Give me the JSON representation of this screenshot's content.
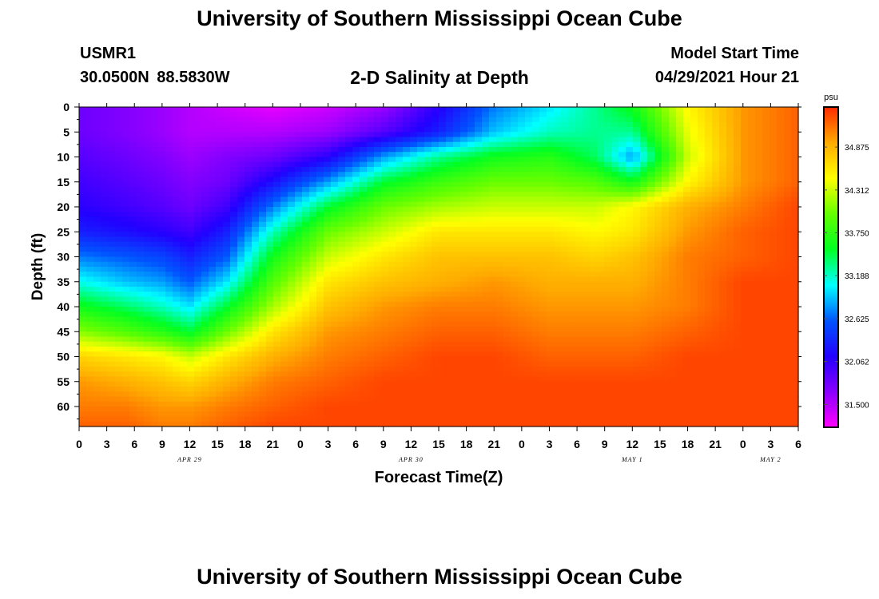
{
  "header": {
    "title": "University of Southern Mississippi Ocean Cube",
    "station_id": "USMR1",
    "station_location": "30.0500N 88.5830W",
    "model_start_label": "Model Start Time",
    "model_start_value": "04/29/2021 Hour 21"
  },
  "footer": {
    "title": "University of Southern Mississippi Ocean Cube"
  },
  "colors": {
    "scale": [
      "#ff00ff",
      "#8a00ff",
      "#2200ff",
      "#0055ff",
      "#00ffff",
      "#00ff22",
      "#66ff00",
      "#ffff00",
      "#ffaa00",
      "#ff2a00"
    ]
  },
  "chart_data": {
    "type": "heatmap",
    "title": "2-D Salinity at Depth",
    "xlabel": "Forecast Time(Z)",
    "ylabel": "Depth (ft)",
    "colorbar_unit": "psu",
    "colorbar_ticks": [
      31.5,
      32.062,
      32.625,
      33.188,
      33.75,
      34.312,
      34.875
    ],
    "colorbar_tick_labels": [
      "31.500",
      "32.062",
      "32.625",
      "33.188",
      "33.750",
      "34.312",
      "34.875"
    ],
    "value_range": [
      31.2,
      35.4
    ],
    "x_hours": [
      0,
      3,
      6,
      9,
      12,
      15,
      18,
      21,
      24,
      27,
      30,
      33,
      36,
      39,
      42,
      45,
      48,
      51,
      54,
      57,
      60,
      63,
      66,
      69,
      72,
      75,
      78
    ],
    "x_tick_labels": [
      "0",
      "3",
      "6",
      "9",
      "12",
      "15",
      "18",
      "21",
      "0",
      "3",
      "6",
      "9",
      "12",
      "15",
      "18",
      "21",
      "0",
      "3",
      "6",
      "9",
      "12",
      "15",
      "18",
      "21",
      "0",
      "3",
      "6"
    ],
    "date_labels": [
      {
        "hour": 12,
        "label": "APR 29"
      },
      {
        "hour": 36,
        "label": "APR 30"
      },
      {
        "hour": 60,
        "label": "MAY 1"
      },
      {
        "hour": 75,
        "label": "MAY 2"
      }
    ],
    "xlim": [
      0,
      78
    ],
    "ylim": [
      0,
      64
    ],
    "y_ticks": [
      0,
      5,
      10,
      15,
      20,
      25,
      30,
      35,
      40,
      45,
      50,
      55,
      60
    ],
    "depths": [
      0,
      5,
      10,
      15,
      20,
      25,
      30,
      35,
      40,
      45,
      50,
      55,
      60,
      64
    ],
    "values": [
      [
        31.8,
        31.7,
        31.6,
        31.5,
        31.4,
        31.3,
        31.4,
        31.6,
        32.1,
        32.7,
        33.0,
        33.3,
        33.6,
        34.5,
        35.0,
        35.2
      ],
      [
        31.8,
        31.7,
        31.6,
        31.5,
        31.5,
        31.5,
        31.6,
        31.9,
        32.3,
        32.9,
        33.2,
        33.3,
        33.3,
        34.4,
        35.0,
        35.2
      ],
      [
        31.9,
        31.8,
        31.7,
        31.6,
        31.7,
        31.8,
        32.1,
        32.8,
        33.3,
        33.6,
        33.7,
        33.4,
        32.8,
        34.3,
        35.0,
        35.2
      ],
      [
        32.0,
        31.9,
        31.8,
        31.7,
        31.8,
        32.2,
        32.8,
        33.5,
        33.8,
        34.0,
        34.0,
        33.9,
        33.6,
        34.5,
        35.0,
        35.2
      ],
      [
        32.1,
        32.0,
        31.9,
        31.8,
        32.0,
        32.7,
        33.5,
        34.0,
        34.2,
        34.3,
        34.3,
        34.3,
        34.5,
        34.9,
        35.1,
        35.3
      ],
      [
        32.3,
        32.2,
        32.1,
        32.0,
        32.3,
        33.2,
        34.0,
        34.3,
        34.6,
        34.6,
        34.6,
        34.5,
        34.6,
        35.0,
        35.2,
        35.3
      ],
      [
        32.7,
        32.6,
        32.5,
        32.3,
        32.6,
        33.6,
        34.3,
        34.6,
        34.8,
        34.8,
        34.8,
        34.7,
        34.8,
        35.1,
        35.2,
        35.3
      ],
      [
        33.1,
        32.9,
        32.8,
        32.6,
        33.0,
        33.9,
        34.6,
        34.8,
        34.9,
        35.0,
        34.9,
        34.9,
        34.9,
        35.1,
        35.3,
        35.3
      ],
      [
        33.6,
        33.4,
        33.2,
        33.0,
        33.5,
        34.2,
        34.8,
        35.0,
        35.1,
        35.1,
        35.0,
        35.0,
        35.0,
        35.1,
        35.3,
        35.3
      ],
      [
        34.1,
        33.9,
        33.7,
        33.5,
        34.0,
        34.6,
        35.0,
        35.1,
        35.2,
        35.2,
        35.1,
        35.1,
        35.1,
        35.2,
        35.3,
        35.3
      ],
      [
        34.7,
        34.6,
        34.5,
        34.3,
        34.6,
        34.9,
        35.1,
        35.2,
        35.3,
        35.3,
        35.2,
        35.2,
        35.2,
        35.3,
        35.3,
        35.3
      ],
      [
        35.0,
        34.9,
        34.8,
        34.7,
        34.9,
        35.1,
        35.2,
        35.3,
        35.3,
        35.3,
        35.3,
        35.3,
        35.3,
        35.3,
        35.3,
        35.3
      ],
      [
        35.1,
        35.1,
        35.0,
        35.0,
        35.1,
        35.2,
        35.3,
        35.3,
        35.3,
        35.3,
        35.3,
        35.3,
        35.3,
        35.3,
        35.3,
        35.3
      ],
      [
        35.2,
        35.2,
        35.1,
        35.1,
        35.2,
        35.3,
        35.3,
        35.3,
        35.3,
        35.3,
        35.3,
        35.3,
        35.3,
        35.3,
        35.3,
        35.3
      ]
    ],
    "value_hours": [
      0,
      5,
      9,
      12,
      16,
      21,
      27,
      33,
      39,
      45,
      51,
      56,
      60,
      66,
      72,
      78
    ]
  }
}
